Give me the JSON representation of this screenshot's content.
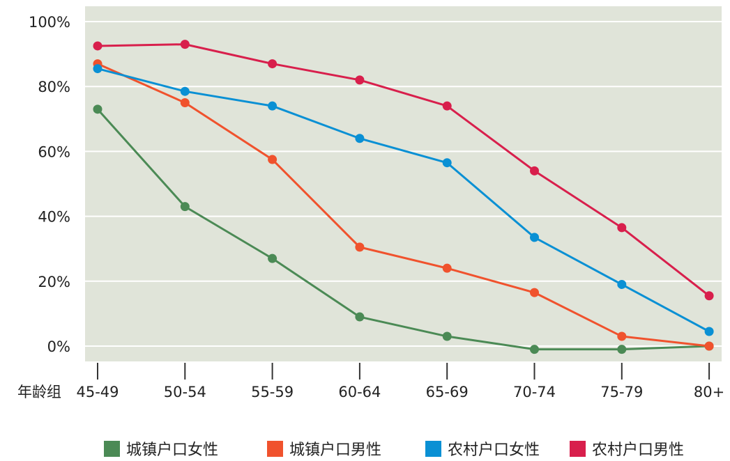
{
  "chart_data": {
    "type": "line",
    "xlabel": "年龄组",
    "categories": [
      "45-49",
      "50-54",
      "55-59",
      "60-64",
      "65-69",
      "70-74",
      "75-79",
      "80+"
    ],
    "ylim": [
      0,
      100
    ],
    "yticks": [
      0,
      20,
      40,
      60,
      80,
      100
    ],
    "ytick_labels": [
      "0%",
      "20%",
      "40%",
      "60%",
      "80%",
      "100%"
    ],
    "grid": true,
    "legend_position": "bottom",
    "background_color": "#e0e4d9",
    "series": [
      {
        "name": "城镇户口女性",
        "color": "#4b8a55",
        "values": [
          73,
          43,
          27,
          9,
          3,
          -1,
          -1,
          0
        ]
      },
      {
        "name": "城镇户口男性",
        "color": "#f0522d",
        "values": [
          87,
          75,
          57.5,
          30.5,
          24,
          16.5,
          3,
          0
        ]
      },
      {
        "name": "农村户口女性",
        "color": "#0a90d4",
        "values": [
          85.5,
          78.5,
          74,
          64,
          56.5,
          33.5,
          19,
          4.5
        ]
      },
      {
        "name": "农村户口男性",
        "color": "#d81f4c",
        "values": [
          92.5,
          93,
          87,
          82,
          74,
          54,
          36.5,
          15.5
        ]
      }
    ]
  }
}
